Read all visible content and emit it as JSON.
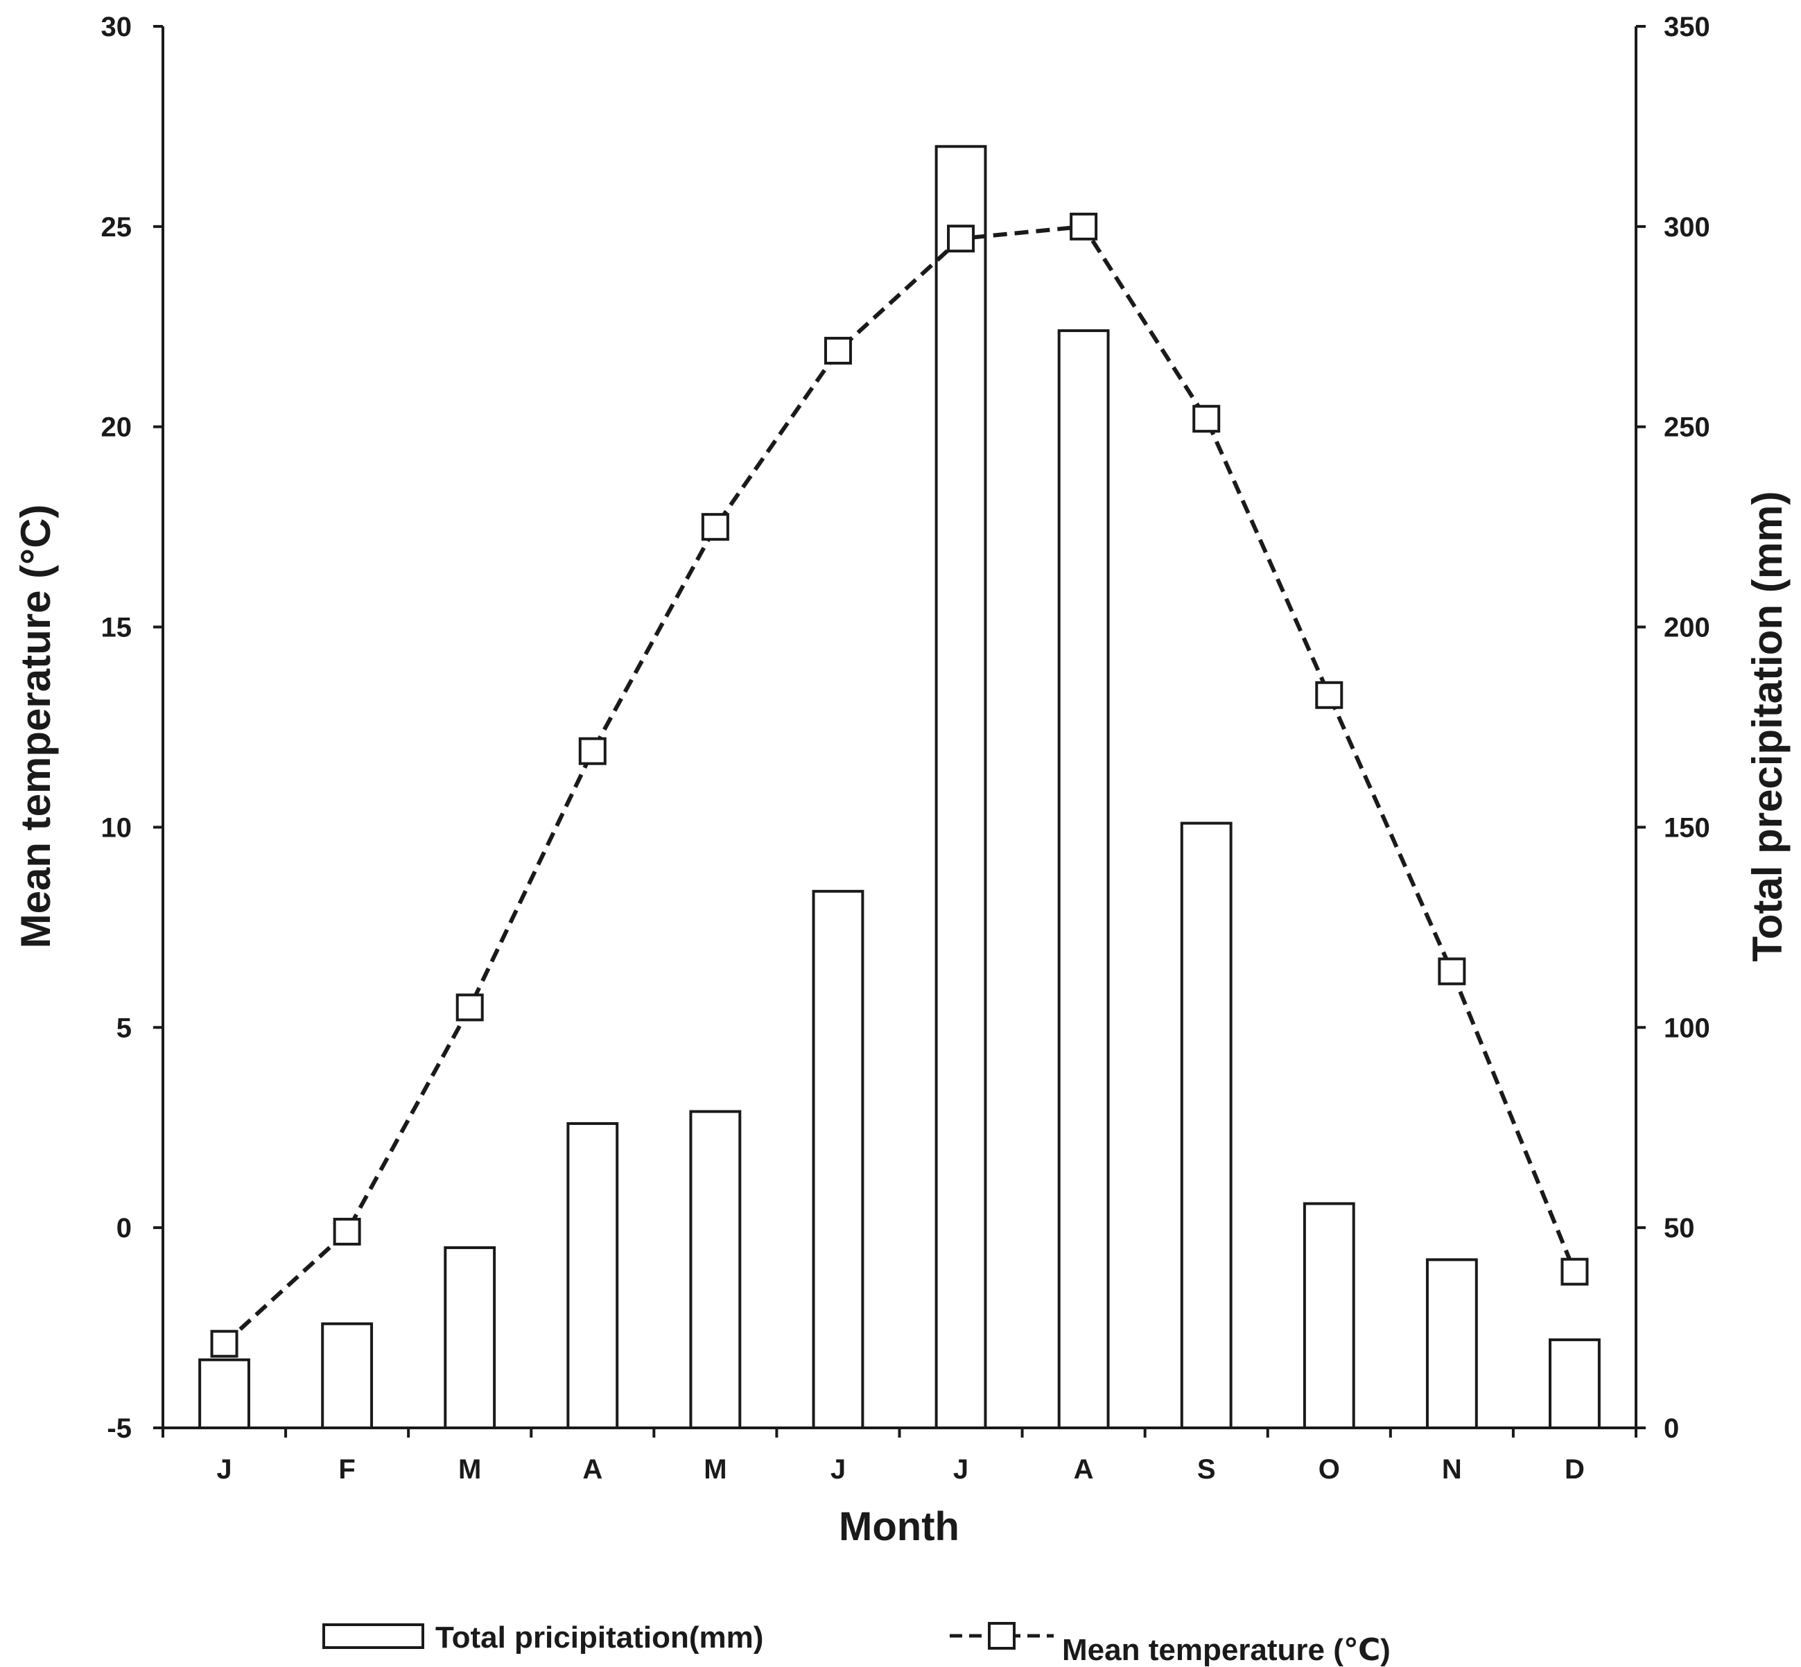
{
  "chart_data": {
    "type": "bar+line",
    "categories": [
      "J",
      "F",
      "M",
      "A",
      "M",
      "J",
      "J",
      "A",
      "S",
      "O",
      "N",
      "D"
    ],
    "series": [
      {
        "name": "Total pricipitation(mm)",
        "type": "bar",
        "axis": "right",
        "values": [
          17,
          26,
          45,
          76,
          79,
          134,
          320,
          274,
          151,
          56,
          42,
          22
        ]
      },
      {
        "name": "Mean temperature (℃)",
        "type": "line",
        "axis": "left",
        "marker": "open-square",
        "line_style": "dashed",
        "values": [
          -2.9,
          -0.1,
          5.5,
          11.9,
          17.5,
          21.9,
          24.7,
          25.0,
          20.2,
          13.3,
          6.4,
          -1.1
        ]
      }
    ],
    "xlabel": "Month",
    "ylabel_left": "Mean temperature (°C)",
    "ylabel_right": "Total precipitation (mm)",
    "ylim_left": [
      -5,
      30
    ],
    "yticks_left": [
      -5,
      0,
      5,
      10,
      15,
      20,
      25,
      30
    ],
    "ylim_right": [
      0,
      350
    ],
    "yticks_right": [
      0,
      50,
      100,
      150,
      200,
      250,
      300,
      350
    ],
    "grid": false,
    "legend_position": "bottom",
    "colors": {
      "bar_fill": "#ffffff",
      "stroke": "#1a1a1a",
      "background": "#ffffff"
    }
  }
}
